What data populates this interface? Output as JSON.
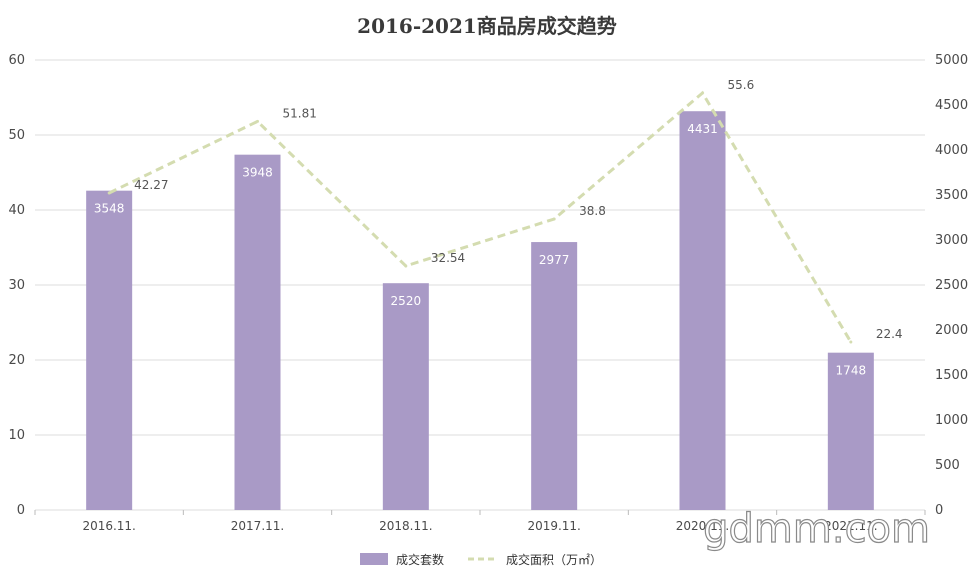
{
  "chart_data": {
    "type": "bar+line",
    "title": "2016-2021商品房成交趋势",
    "categories": [
      "2016.11.",
      "2017.11.",
      "2018.11.",
      "2019.11.",
      "2020.11.",
      "2021.11."
    ],
    "series": [
      {
        "name": "成交套数",
        "type": "bar",
        "axis": "right",
        "values": [
          3548,
          3948,
          2520,
          2977,
          4431,
          1748
        ],
        "color": "#a99ac6"
      },
      {
        "name": "成交面积（万㎡）",
        "type": "line",
        "style": "dashed",
        "axis": "left",
        "values": [
          42.27,
          51.81,
          32.54,
          38.8,
          55.6,
          22.4
        ],
        "color": "#d4dcb0"
      }
    ],
    "y_left": {
      "ylim": [
        0,
        60
      ],
      "ticks": [
        0,
        10,
        20,
        30,
        40,
        50,
        60
      ]
    },
    "y_right": {
      "ylim": [
        0,
        5000
      ],
      "ticks": [
        0,
        500,
        1000,
        1500,
        2000,
        2500,
        3000,
        3500,
        4000,
        4500,
        5000
      ]
    },
    "grid": true,
    "legend": "bottom"
  },
  "watermark": "gdmm.com"
}
